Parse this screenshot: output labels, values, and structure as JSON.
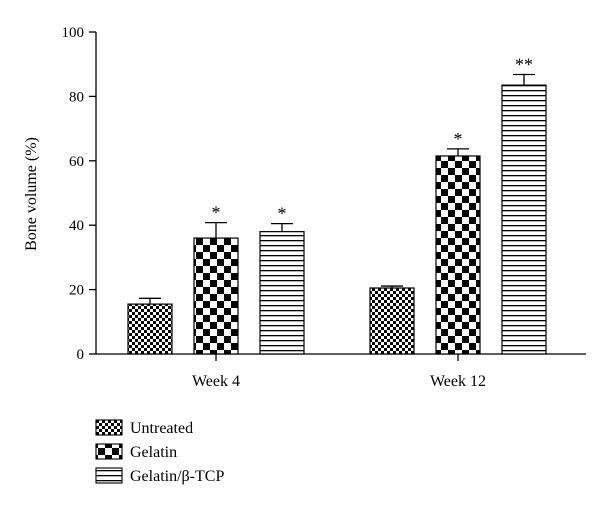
{
  "chart_data": {
    "type": "bar",
    "ylabel": "Bone volume (%)",
    "ylim": [
      0,
      100
    ],
    "yticks": [
      0,
      20,
      40,
      60,
      80,
      100
    ],
    "categories": [
      "Week 4",
      "Week 12"
    ],
    "series": [
      {
        "name": "Untreated",
        "pattern": "checker-fine",
        "values": [
          15.5,
          20.5
        ],
        "errors": [
          1.8,
          0.6
        ],
        "significance": [
          "",
          ""
        ]
      },
      {
        "name": "Gelatin",
        "pattern": "checker-coarse",
        "values": [
          36,
          61.5
        ],
        "errors": [
          4.8,
          2.2
        ],
        "significance": [
          "*",
          "*"
        ]
      },
      {
        "name": "Gelatin/β-TCP",
        "pattern": "horizontal-lines",
        "values": [
          38,
          83.5
        ],
        "errors": [
          2.5,
          3.3
        ],
        "significance": [
          "*",
          "**"
        ]
      }
    ],
    "legend_position": "bottom-left",
    "grid": false
  }
}
